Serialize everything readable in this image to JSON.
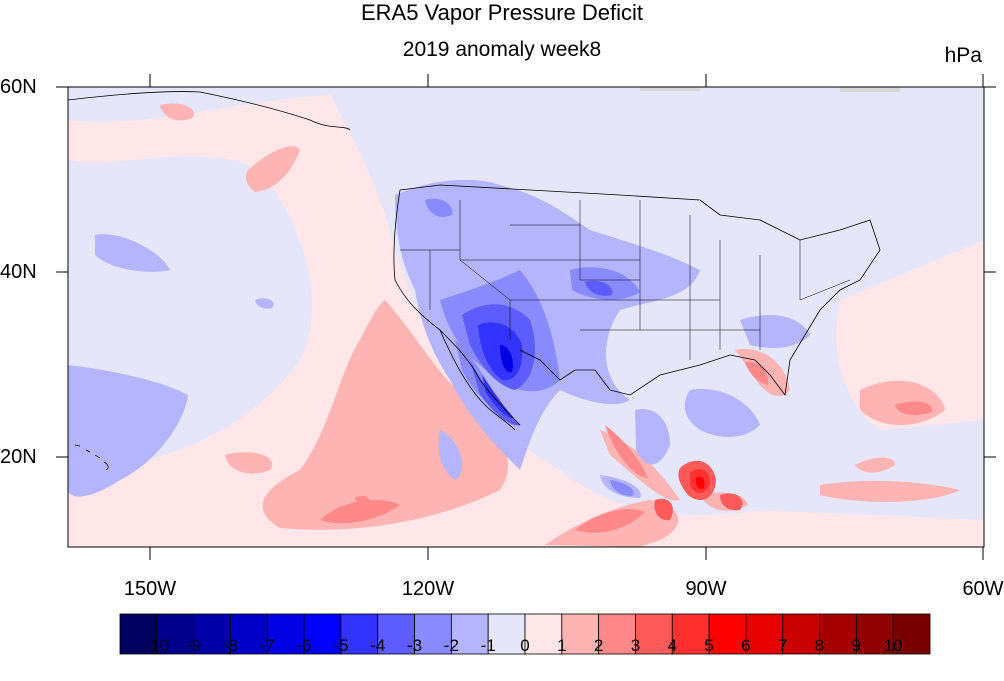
{
  "title": "ERA5 Vapor Pressure Deficit",
  "subtitle": "2019 anomaly week8",
  "units": "hPa",
  "map": {
    "region": "North Pacific and contiguous United States",
    "lon_range": [
      -160,
      -60
    ],
    "lat_range": [
      10,
      60
    ],
    "lat_labels": [
      "60N",
      "40N",
      "20N"
    ],
    "lon_labels": [
      "150W",
      "120W",
      "90W",
      "60W"
    ],
    "background_anomaly": "slightly negative over land and north Pacific, slightly positive in subtropical Pacific",
    "features": [
      {
        "name": "Southwest US / Baja strong negative anomaly",
        "min_value": -6
      },
      {
        "name": "Subtropical eastern Pacific positive anomaly",
        "max_value": 3
      },
      {
        "name": "Yucatan / Caribbean positive anomaly",
        "max_value": 7
      },
      {
        "name": "Florida positive anomaly",
        "max_value": 3
      }
    ]
  },
  "colorbar": {
    "ticks": [
      "-10",
      "-9",
      "-8",
      "-7",
      "-6",
      "-5",
      "-4",
      "-3",
      "-2",
      "-1",
      "0",
      "1",
      "2",
      "3",
      "4",
      "5",
      "6",
      "7",
      "8",
      "9",
      "10"
    ],
    "colors": [
      "#00005e",
      "#00008a",
      "#0000a8",
      "#0000c8",
      "#0000e4",
      "#0000ff",
      "#3333ff",
      "#5c5cff",
      "#8a8aff",
      "#b4b4ff",
      "#e6e6fa",
      "#ffe6e8",
      "#ffb4b4",
      "#ff8888",
      "#ff5a5a",
      "#ff3030",
      "#ff0000",
      "#e60000",
      "#c80000",
      "#a60000",
      "#900000",
      "#780000"
    ]
  }
}
